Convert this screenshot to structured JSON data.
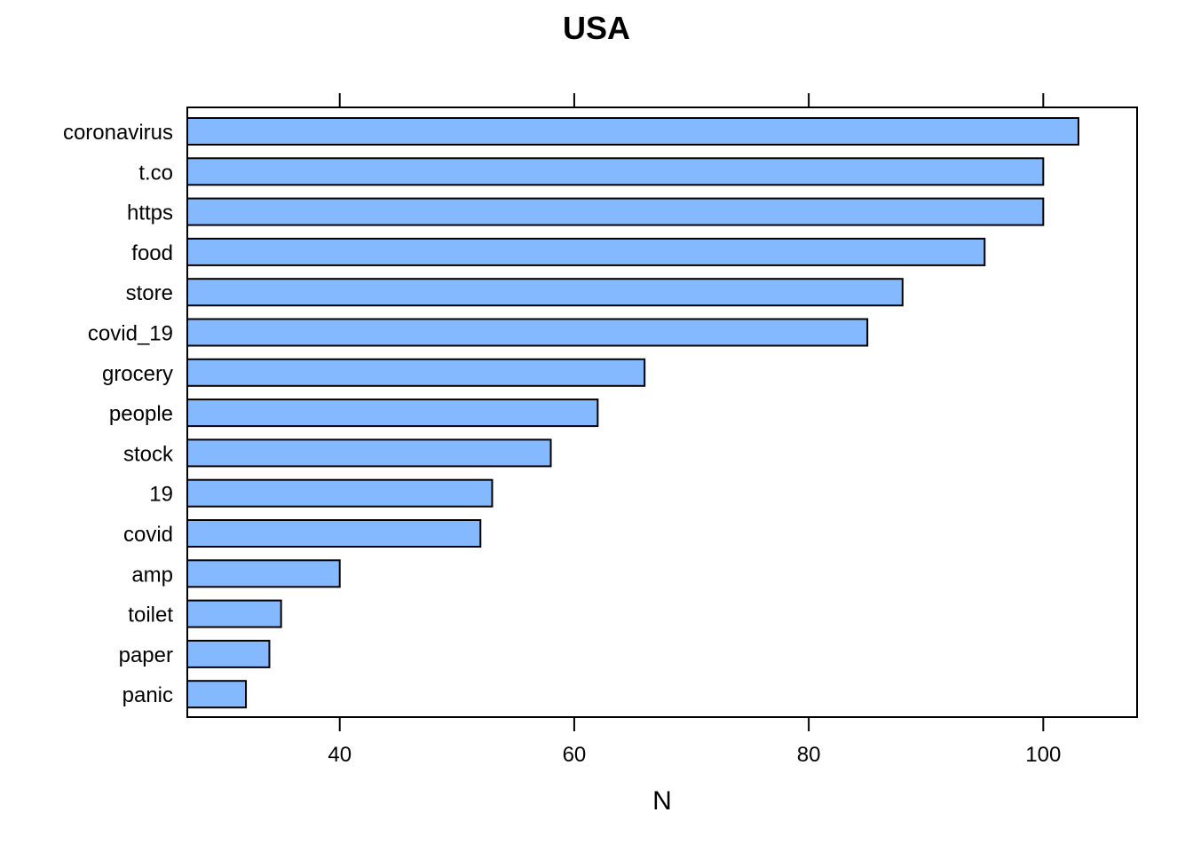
{
  "chart_data": {
    "type": "bar",
    "orientation": "horizontal",
    "title": "USA",
    "xlabel": "N",
    "ylabel": "",
    "xlim": [
      27,
      108
    ],
    "xticks": [
      40,
      60,
      80,
      100
    ],
    "grid": false,
    "bar_color": "#84B8FF",
    "categories": [
      "coronavirus",
      "t.co",
      "https",
      "food",
      "store",
      "covid_19",
      "grocery",
      "people",
      "stock",
      "19",
      "covid",
      "amp",
      "toilet",
      "paper",
      "panic"
    ],
    "values": [
      103,
      100,
      100,
      95,
      88,
      85,
      66,
      62,
      58,
      53,
      52,
      40,
      35,
      34,
      32
    ]
  }
}
